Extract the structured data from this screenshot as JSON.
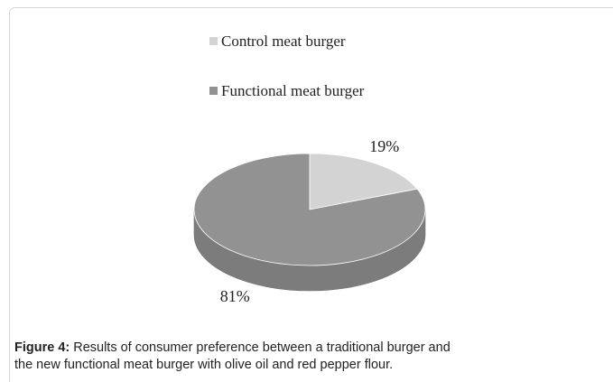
{
  "chart_data": {
    "type": "pie",
    "categories": [
      "Control meat burger",
      "Functional meat burger"
    ],
    "values": [
      19,
      81
    ],
    "value_labels": [
      "19%",
      "81%"
    ],
    "colors": [
      "#d3d3d3",
      "#929292"
    ],
    "legend": "top"
  },
  "figure_label": "Figure 4:",
  "caption": "Results of consumer preference between a traditional burger and the new functional meat burger with olive oil and red pepper flour."
}
